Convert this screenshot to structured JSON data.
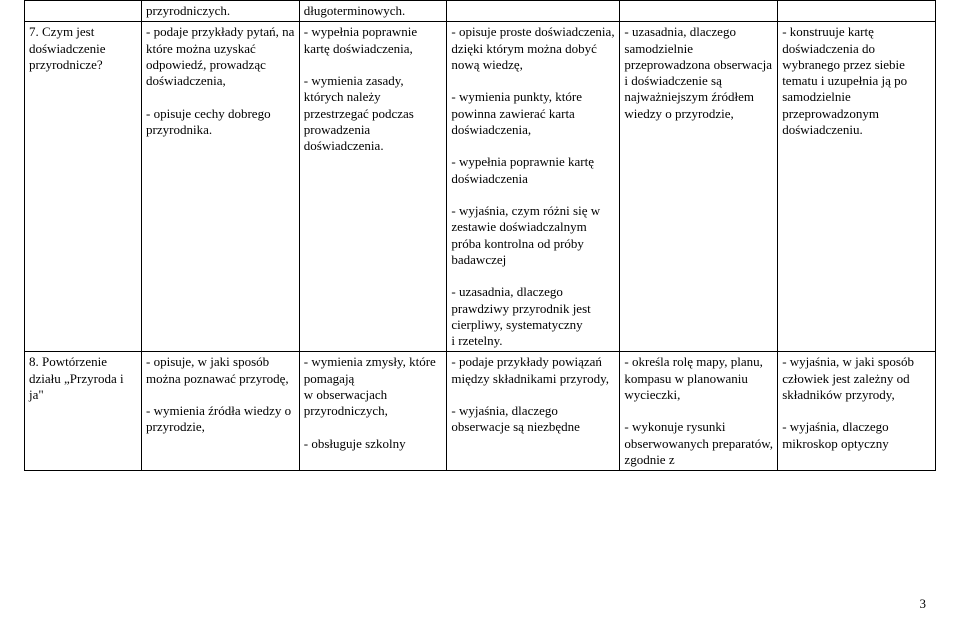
{
  "table": {
    "rows": [
      {
        "cells": [
          "",
          "przyrodniczych.",
          "długoterminowych.",
          "",
          "",
          ""
        ]
      },
      {
        "cells": [
          "7. Czym jest doświadczenie przyrodnicze?",
          "- podaje przykłady pytań, na które można uzyskać odpowiedź, prowadząc doświadczenia,\n\n- opisuje cechy dobrego przyrodnika.",
          "- wypełnia poprawnie kartę doświadczenia,\n\n- wymienia zasady, których należy przestrzegać podczas prowadzenia doświadczenia.",
          "- opisuje proste doświadczenia, dzięki którym można dobyć nową wiedzę,\n\n- wymienia punkty, które powinna zawierać karta doświadczenia,\n\n - wypełnia poprawnie kartę doświadczenia\n\n- wyjaśnia, czym różni się w zestawie doświadczalnym próba kontrolna od próby badawczej\n\n- uzasadnia, dlaczego prawdziwy przyrodnik jest cierpliwy, systematyczny\ni rzetelny.",
          "- uzasadnia, dlaczego samodzielnie przeprowadzona obserwacja  i doświadczenie są najważniejszym źródłem wiedzy            o przyrodzie,",
          "- konstruuje kartę doświadczenia do wybranego przez siebie tematu    i uzupełnia ją po samodzielnie przeprowadzonym doświadczeniu."
        ]
      },
      {
        "cells": [
          "8. Powtórzenie działu „Przyroda i ja\"",
          "-  opisuje, w jaki sposób można poznawać przyrodę,\n\n- wymienia źródła wiedzy o przyrodzie,",
          "- wymienia zmysły, które pomagają\nw obserwacjach przyrodniczych,\n\n- obsługuje szkolny",
          "- podaje przykłady powiązań między składnikami przyrody,\n\n- wyjaśnia, dlaczego obserwacje są niezbędne",
          "- określa rolę mapy, planu, kompasu w planowaniu wycieczki,\n\n- wykonuje rysunki obserwowanych preparatów, zgodnie z",
          "- wyjaśnia, w jaki sposób człowiek jest zależny od składników przyrody,\n\n- wyjaśnia, dlaczego mikroskop optyczny"
        ]
      }
    ]
  },
  "page_number": "3"
}
